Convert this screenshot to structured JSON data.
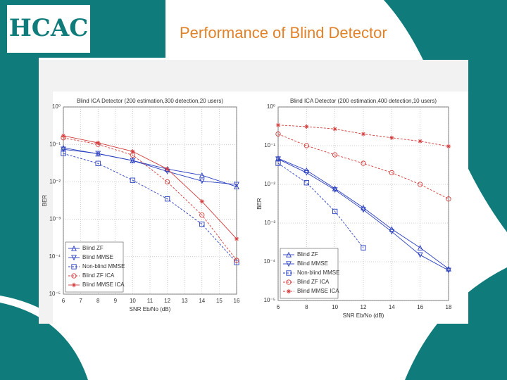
{
  "slide_title": "Performance of Blind Detector",
  "logo": "HCAC",
  "chart_data": [
    {
      "type": "line",
      "title": "Blind ICA Detector (200 estimation,300 detection,20 users)",
      "x_label": "SNR Eb/No (dB)",
      "y_label": "BER",
      "log_y": true,
      "grid": true,
      "legend": "lower left",
      "x": [
        6,
        8,
        10,
        12,
        14,
        16
      ],
      "xlim": [
        6,
        16
      ],
      "xticks": [
        6,
        7,
        8,
        9,
        10,
        11,
        12,
        13,
        14,
        15,
        16
      ],
      "ylim": [
        1e-05,
        1
      ],
      "yticks": [
        {
          "value": 1,
          "label": "10⁰"
        },
        {
          "value": 0.1,
          "label": "10⁻¹"
        },
        {
          "value": 0.01,
          "label": "10⁻²"
        },
        {
          "value": 0.001,
          "label": "10⁻³"
        },
        {
          "value": 0.0001,
          "label": "10⁻⁴"
        },
        {
          "value": 1e-05,
          "label": "10⁻⁵"
        }
      ],
      "series": [
        {
          "name": "Blind ZF",
          "color": "#2a3fbf",
          "marker": "triangle",
          "dashed": false,
          "values": [
            0.081,
            0.056,
            0.037,
            0.022,
            0.015,
            0.0074
          ]
        },
        {
          "name": "Blind MMSE",
          "color": "#2a3fbf",
          "marker": "triangle-down",
          "dashed": false,
          "values": [
            0.074,
            0.057,
            0.037,
            0.019,
            0.0105,
            0.0085
          ]
        },
        {
          "name": "Non-blind MMSE",
          "color": "#2a3fbf",
          "marker": "square",
          "dashed": true,
          "values": [
            0.057,
            0.031,
            0.011,
            0.0035,
            0.00074,
            7e-05
          ]
        },
        {
          "name": "Blind ZF ICA",
          "color": "#d23a3a",
          "marker": "circle",
          "dashed": true,
          "values": [
            0.15,
            0.1,
            0.052,
            0.01,
            0.0013,
            8e-05
          ]
        },
        {
          "name": "Blind MMSE ICA",
          "color": "#d23a3a",
          "marker": "star",
          "dashed": false,
          "values": [
            0.17,
            0.11,
            0.065,
            0.022,
            0.003,
            0.0003
          ]
        }
      ]
    },
    {
      "type": "line",
      "title": "Blind ICA Detector (200 estimation,400 detection,10 users)",
      "x_label": "SNR Eb/No (dB)",
      "y_label": "BER",
      "log_y": true,
      "grid": true,
      "legend": "lower left",
      "x": [
        6,
        8,
        10,
        12,
        14,
        16,
        18
      ],
      "xlim": [
        6,
        18
      ],
      "xticks": [
        6,
        8,
        10,
        12,
        14,
        16,
        18
      ],
      "ylim": [
        1e-05,
        1
      ],
      "yticks": [
        {
          "value": 1,
          "label": "10⁰"
        },
        {
          "value": 0.1,
          "label": "10⁻¹"
        },
        {
          "value": 0.01,
          "label": "10⁻²"
        },
        {
          "value": 0.001,
          "label": "10⁻³"
        },
        {
          "value": 0.0001,
          "label": "10⁻⁴"
        },
        {
          "value": 1e-05,
          "label": "10⁻⁵"
        }
      ],
      "series": [
        {
          "name": "Blind ZF",
          "color": "#2a3fbf",
          "marker": "triangle",
          "dashed": false,
          "values": [
            0.047,
            0.023,
            0.0078,
            0.0025,
            0.0007,
            0.00023,
            6.6e-05
          ]
        },
        {
          "name": "Blind MMSE",
          "color": "#2a3fbf",
          "marker": "triangle-down",
          "dashed": false,
          "values": [
            0.045,
            0.02,
            0.0072,
            0.0022,
            0.0006,
            0.00015,
            6e-05
          ]
        },
        {
          "name": "Non-blind MMSE",
          "color": "#2a3fbf",
          "marker": "square",
          "dashed": true,
          "values": [
            0.035,
            0.011,
            0.002,
            0.00023,
            null,
            null,
            null
          ]
        },
        {
          "name": "Blind ZF ICA",
          "color": "#d23a3a",
          "marker": "circle",
          "dashed": true,
          "values": [
            0.2,
            0.1,
            0.058,
            0.035,
            0.02,
            0.01,
            0.0042
          ]
        },
        {
          "name": "Blind MMSE ICA",
          "color": "#d23a3a",
          "marker": "star",
          "dashed": true,
          "values": [
            0.34,
            0.31,
            0.27,
            0.2,
            0.16,
            0.13,
            0.096
          ]
        }
      ]
    }
  ]
}
